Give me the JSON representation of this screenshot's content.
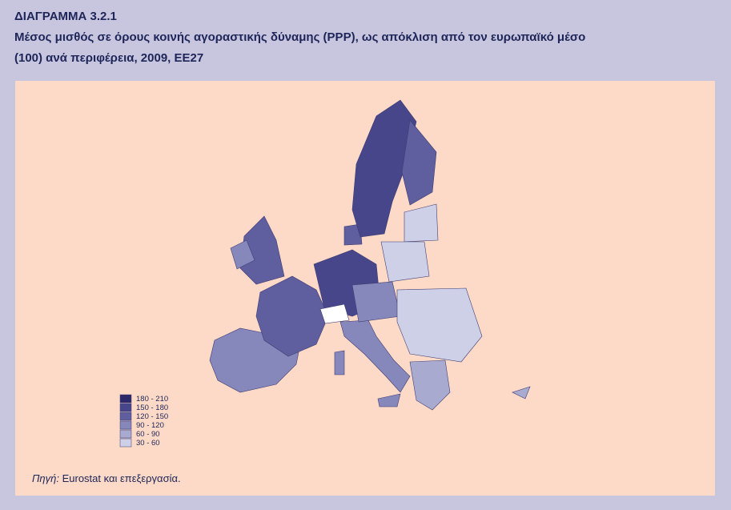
{
  "header": {
    "label": "ΔΙΑΓΡΑΜΜΑ 3.2.1",
    "title_line1": "Μέσος μισθός σε όρους κοινής αγοραστικής δύναμης (PPP), ως απόκλιση από τον ευρωπαϊκό μέσο",
    "title_line2": "(100) ανά περιφέρεια, 2009, ΕΕ27"
  },
  "legend": {
    "items": [
      {
        "label": "180 - 210",
        "color": "#2c2869"
      },
      {
        "label": "150 - 180",
        "color": "#47468a"
      },
      {
        "label": "120 - 150",
        "color": "#5f5e9e"
      },
      {
        "label": "90 - 120",
        "color": "#8687bb"
      },
      {
        "label": "60 - 90",
        "color": "#a8aad0"
      },
      {
        "label": "30 - 60",
        "color": "#cdd0e7"
      }
    ]
  },
  "source": {
    "prefix": "Πηγή:",
    "text": "Eurostat και επεξεργασία."
  }
}
